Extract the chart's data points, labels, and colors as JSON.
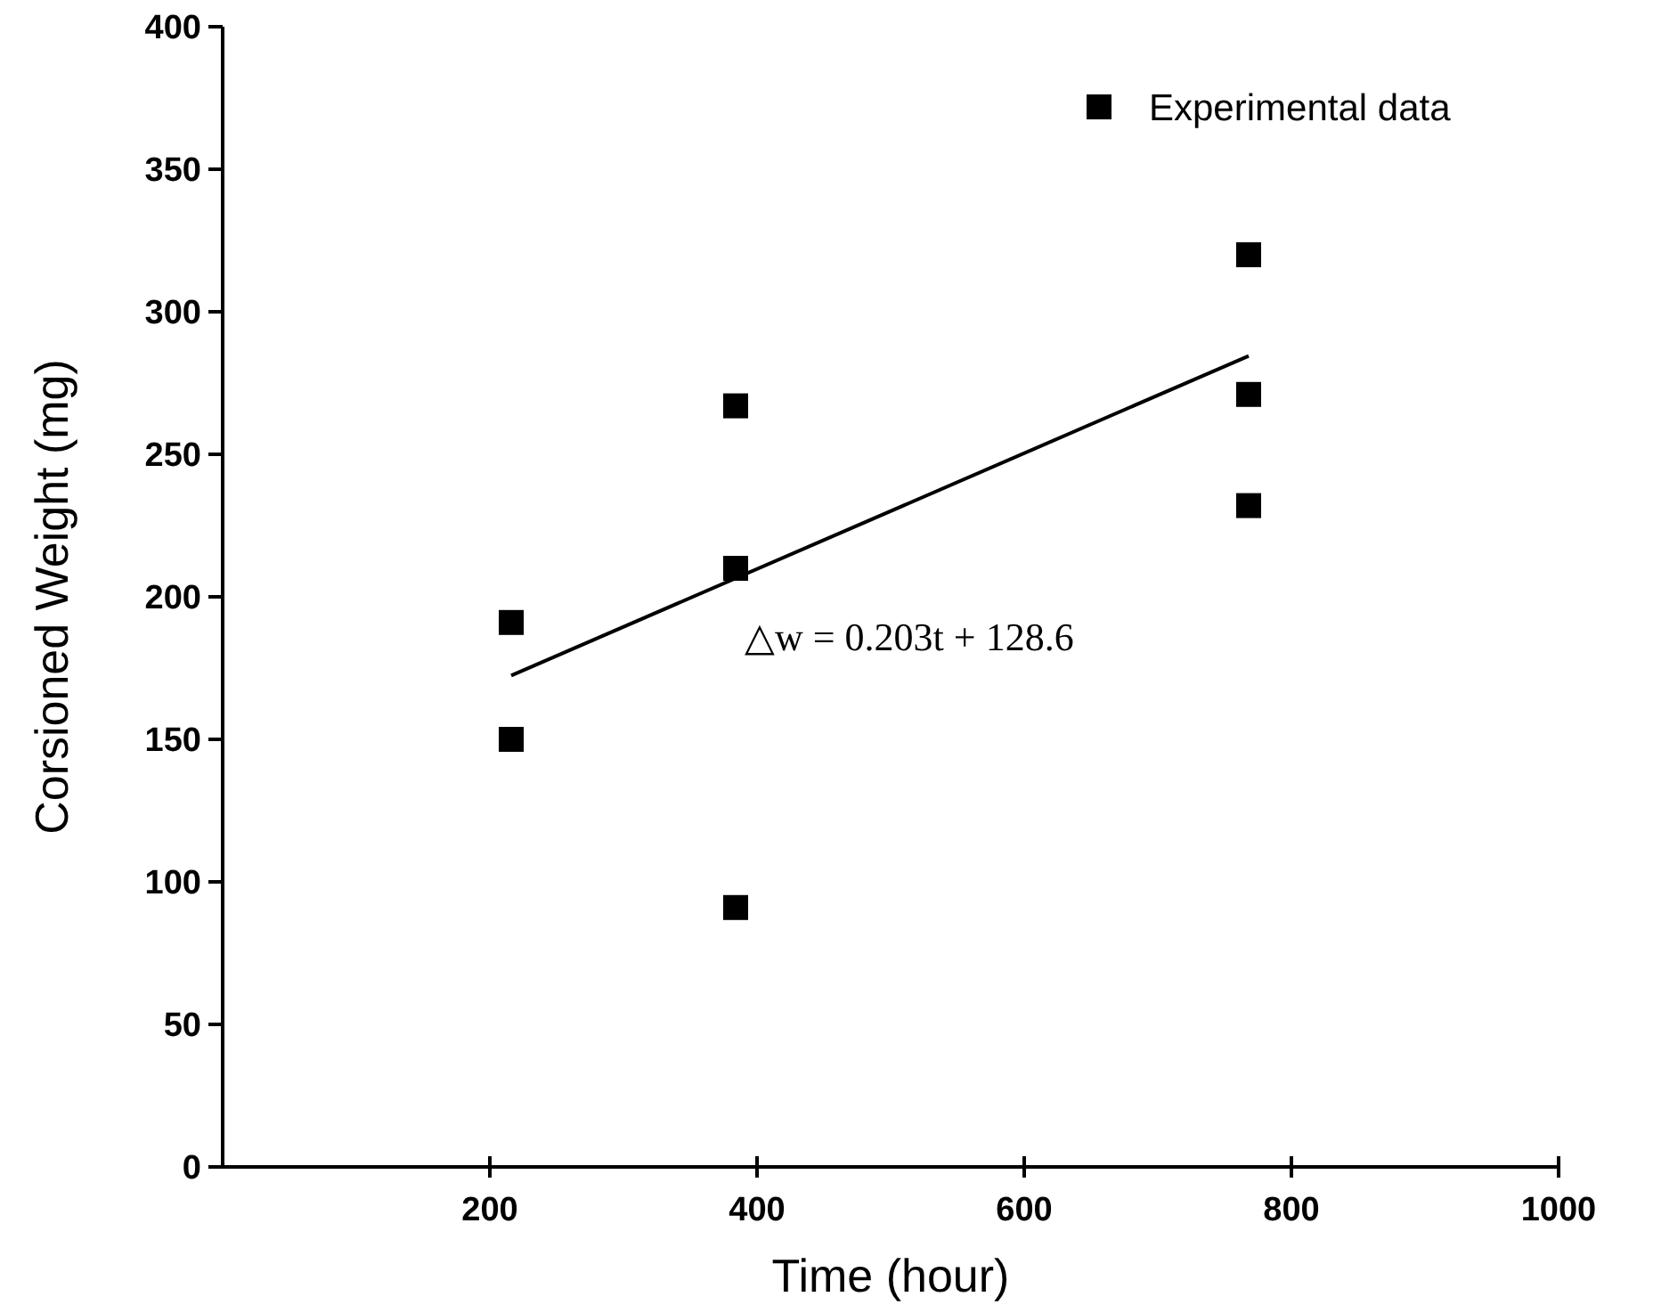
{
  "chart_data": {
    "type": "scatter",
    "xlabel": "Time (hour)",
    "ylabel": "Corsioned Weight (mg)",
    "xlim": [
      0,
      1000
    ],
    "xticks": [
      200,
      400,
      600,
      800,
      1000
    ],
    "ylim": [
      0,
      400
    ],
    "yticks": [
      0,
      50,
      100,
      150,
      200,
      250,
      300,
      350,
      400
    ],
    "grid": false,
    "legend": "top right",
    "series": [
      {
        "name": "Experimental data",
        "marker": "square",
        "color": "#000000",
        "x": [
          216,
          216,
          384,
          384,
          384,
          768,
          768,
          768
        ],
        "values": [
          191,
          150,
          267,
          210,
          91,
          320,
          271,
          232
        ]
      },
      {
        "type": "line",
        "color": "#000000",
        "x": [
          216,
          768
        ],
        "values": [
          172.4,
          284.5
        ],
        "line_style": "solid"
      }
    ],
    "annotations": [
      "△w = 0.203t + 128.6"
    ]
  }
}
